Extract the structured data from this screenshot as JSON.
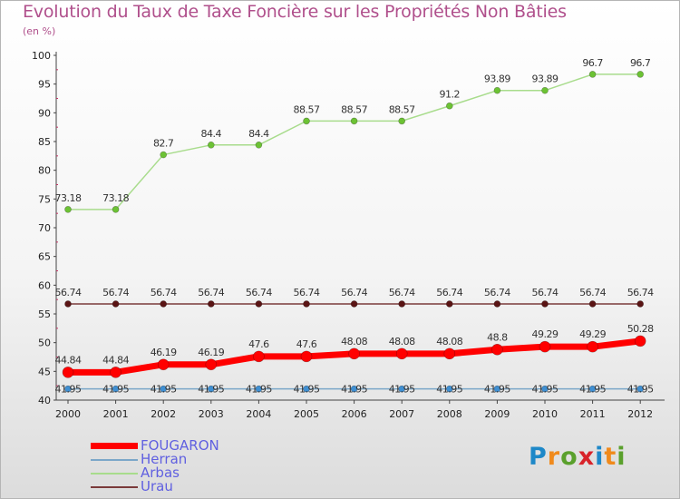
{
  "title": "Evolution du Taux de Taxe Foncière sur les Propriétés Non Bâties",
  "subtitle": "(en %)",
  "logo": {
    "text": "Proxiti",
    "letters": [
      {
        "ch": "P",
        "color": "#1e88c8"
      },
      {
        "ch": "r",
        "color": "#f08a1c"
      },
      {
        "ch": "o",
        "color": "#5aa02c"
      },
      {
        "ch": "x",
        "color": "#d8232a"
      },
      {
        "ch": "i",
        "color": "#1e88c8"
      },
      {
        "ch": "t",
        "color": "#f08a1c"
      },
      {
        "ch": "i",
        "color": "#5aa02c"
      }
    ]
  },
  "chart_data": {
    "type": "line",
    "x": [
      "2000",
      "2001",
      "2002",
      "2003",
      "2004",
      "2005",
      "2006",
      "2007",
      "2008",
      "2009",
      "2010",
      "2011",
      "2012"
    ],
    "ylim": [
      40,
      100
    ],
    "yticks": [
      40,
      45,
      50,
      55,
      60,
      65,
      70,
      75,
      80,
      85,
      90,
      95,
      100
    ],
    "grid": false,
    "legend_position": "bottom-left",
    "series": [
      {
        "name": "FOUGARON",
        "color": "#ff0000",
        "lineWidth": 7,
        "markerColor": "#ff0000",
        "values": [
          44.84,
          44.84,
          46.19,
          46.19,
          47.6,
          47.6,
          48.08,
          48.08,
          48.08,
          48.8,
          49.29,
          49.29,
          50.28
        ],
        "labels": [
          "44.84",
          "44.84",
          "46.19",
          "46.19",
          "47.6",
          "47.6",
          "48.08",
          "48.08",
          "48.08",
          "48.8",
          "49.29",
          "49.29",
          "50.28"
        ]
      },
      {
        "name": "Herran",
        "color": "#7ba7c9",
        "lineWidth": 1.5,
        "markerColor": "#3f8fd2",
        "values": [
          41.95,
          41.95,
          41.95,
          41.95,
          41.95,
          41.95,
          41.95,
          41.95,
          41.95,
          41.95,
          41.95,
          41.95,
          41.95
        ],
        "labels": [
          "41.95",
          "41.95",
          "41.95",
          "41.95",
          "41.95",
          "41.95",
          "41.95",
          "41.95",
          "41.95",
          "41.95",
          "41.95",
          "41.95",
          "41.95"
        ]
      },
      {
        "name": "Arbas",
        "color": "#a8dc8c",
        "lineWidth": 1.5,
        "markerColor": "#6cc234",
        "values": [
          73.18,
          73.18,
          82.7,
          84.4,
          84.4,
          88.57,
          88.57,
          88.57,
          91.2,
          93.89,
          93.89,
          96.7,
          96.7
        ],
        "labels": [
          "73.18",
          "73.18",
          "82.7",
          "84.4",
          "84.4",
          "88.57",
          "88.57",
          "88.57",
          "91.2",
          "93.89",
          "93.89",
          "96.7",
          "96.7"
        ]
      },
      {
        "name": "Urau",
        "color": "#7a3a3a",
        "lineWidth": 1.5,
        "markerColor": "#5a1414",
        "values": [
          56.74,
          56.74,
          56.74,
          56.74,
          56.74,
          56.74,
          56.74,
          56.74,
          56.74,
          56.74,
          56.74,
          56.74,
          56.74
        ],
        "labels": [
          "56.74",
          "56.74",
          "56.74",
          "56.74",
          "56.74",
          "56.74",
          "56.74",
          "56.74",
          "56.74",
          "56.74",
          "56.74",
          "56.74",
          "56.74"
        ]
      }
    ]
  }
}
